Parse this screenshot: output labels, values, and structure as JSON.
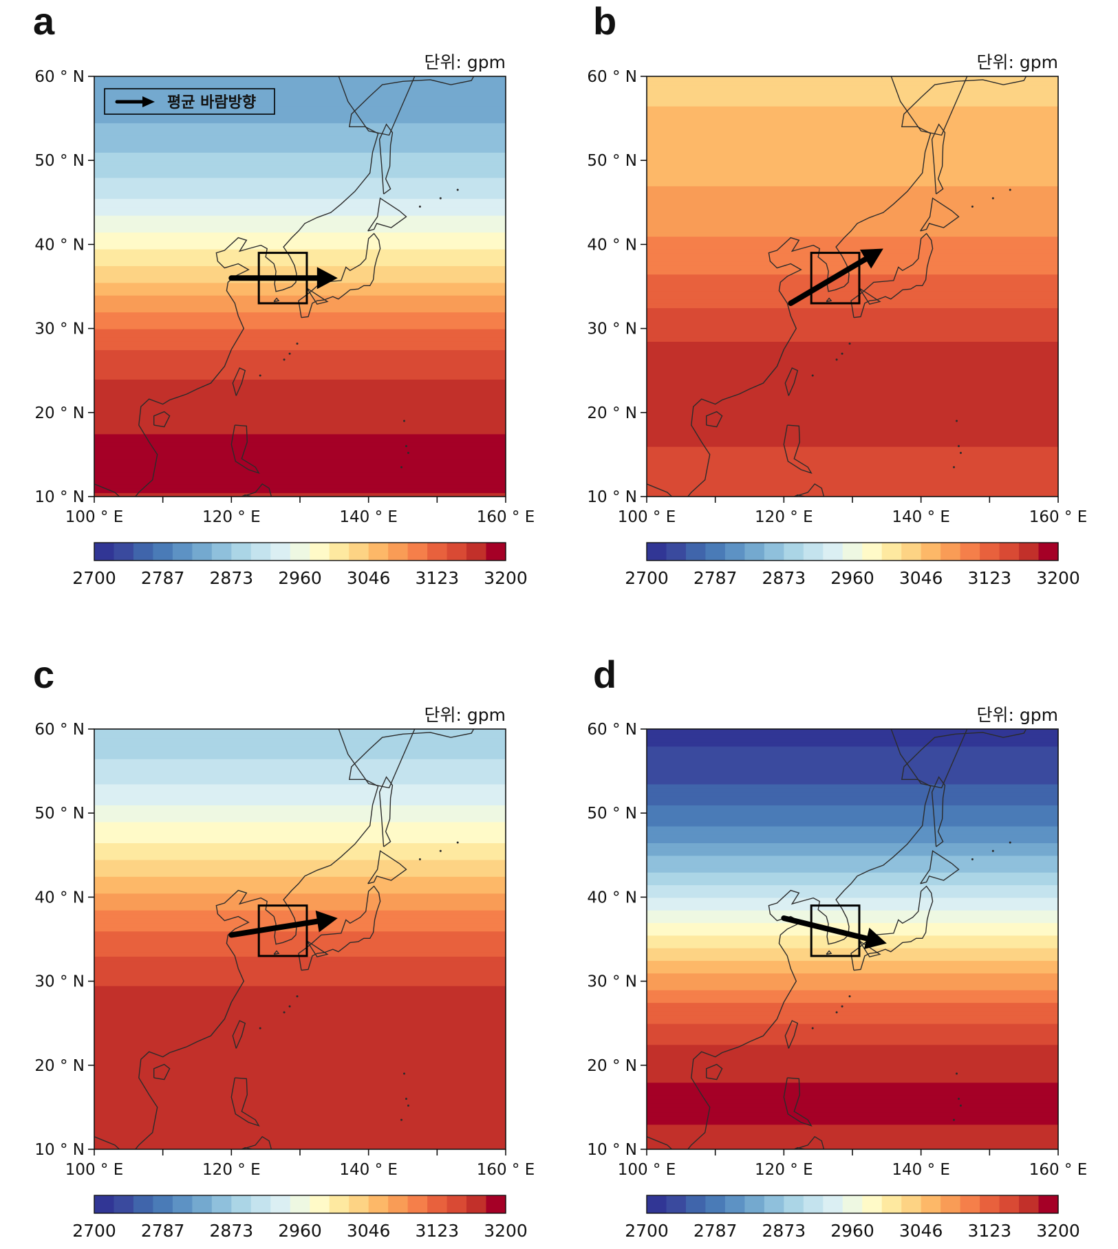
{
  "figure": {
    "unit_label": "단위: gpm",
    "legend_label": "평균 바람방향",
    "colorbar": {
      "tick_labels": [
        "2700",
        "2787",
        "2873",
        "2960",
        "3046",
        "3123",
        "3200"
      ],
      "min": 2700,
      "max": 3200,
      "colors": [
        "#313695",
        "#3a4a9e",
        "#4065ab",
        "#4a7bb7",
        "#5d92c4",
        "#74a9cf",
        "#8fc0dc",
        "#abd5e6",
        "#c4e3ee",
        "#dbeff3",
        "#eef8e2",
        "#fffac8",
        "#fee9a0",
        "#fdd384",
        "#fdb868",
        "#f99c56",
        "#f57f4a",
        "#e8613d",
        "#d94a34",
        "#c2302a",
        "#a50026"
      ]
    },
    "axes": {
      "lat_labels": [
        "10 ° N",
        "20 ° N",
        "30 ° N",
        "40 ° N",
        "50 ° N",
        "60 ° N"
      ],
      "lon_labels": [
        "100 ° E",
        "120 ° E",
        "140 ° E",
        "160 ° E"
      ],
      "lat_range": [
        10,
        60
      ],
      "lon_range": [
        100,
        160
      ]
    },
    "box_region": {
      "lon": [
        124,
        131
      ],
      "lat": [
        33,
        39
      ]
    },
    "panels": [
      {
        "letter": "a",
        "wind_arrow": {
          "from": [
            120,
            36
          ],
          "to": [
            135.5,
            36
          ]
        },
        "bands": [
          {
            "lat": 10,
            "v": 3175
          },
          {
            "lat": 14,
            "v": 3182
          },
          {
            "lat": 17,
            "v": 3178
          },
          {
            "lat": 22,
            "v": 3162
          },
          {
            "lat": 27,
            "v": 3135
          },
          {
            "lat": 31,
            "v": 3095
          },
          {
            "lat": 35,
            "v": 3040
          },
          {
            "lat": 40,
            "v": 2980
          },
          {
            "lat": 45,
            "v": 2920
          },
          {
            "lat": 51,
            "v": 2865
          },
          {
            "lat": 56,
            "v": 2835
          },
          {
            "lat": 60,
            "v": 2830
          }
        ]
      },
      {
        "letter": "b",
        "wind_arrow": {
          "from": [
            121,
            33
          ],
          "to": [
            134.5,
            39.5
          ]
        },
        "bands": [
          {
            "lat": 10,
            "v": 3150
          },
          {
            "lat": 15,
            "v": 3150
          },
          {
            "lat": 20,
            "v": 3160
          },
          {
            "lat": 25,
            "v": 3170
          },
          {
            "lat": 30,
            "v": 3145
          },
          {
            "lat": 35,
            "v": 3115
          },
          {
            "lat": 40,
            "v": 3085
          },
          {
            "lat": 45,
            "v": 3065
          },
          {
            "lat": 50,
            "v": 3045
          },
          {
            "lat": 55,
            "v": 3035
          },
          {
            "lat": 60,
            "v": 3030
          }
        ]
      },
      {
        "letter": "c",
        "wind_arrow": {
          "from": [
            120,
            35.5
          ],
          "to": [
            135.5,
            37.5
          ]
        },
        "bands": [
          {
            "lat": 10,
            "v": 3160
          },
          {
            "lat": 15,
            "v": 3162
          },
          {
            "lat": 20,
            "v": 3165
          },
          {
            "lat": 25,
            "v": 3175
          },
          {
            "lat": 30,
            "v": 3150
          },
          {
            "lat": 35,
            "v": 3115
          },
          {
            "lat": 40,
            "v": 3065
          },
          {
            "lat": 45,
            "v": 3000
          },
          {
            "lat": 50,
            "v": 2950
          },
          {
            "lat": 55,
            "v": 2900
          },
          {
            "lat": 60,
            "v": 2870
          }
        ]
      },
      {
        "letter": "d",
        "wind_arrow": {
          "from": [
            120,
            37.5
          ],
          "to": [
            135,
            34.5
          ]
        },
        "bands": [
          {
            "lat": 10,
            "v": 3170
          },
          {
            "lat": 15,
            "v": 3180
          },
          {
            "lat": 19,
            "v": 3175
          },
          {
            "lat": 23,
            "v": 3150
          },
          {
            "lat": 27,
            "v": 3110
          },
          {
            "lat": 31,
            "v": 3055
          },
          {
            "lat": 35,
            "v": 2990
          },
          {
            "lat": 40,
            "v": 2915
          },
          {
            "lat": 45,
            "v": 2840
          },
          {
            "lat": 50,
            "v": 2780
          },
          {
            "lat": 55,
            "v": 2735
          },
          {
            "lat": 60,
            "v": 2715
          }
        ]
      }
    ]
  }
}
